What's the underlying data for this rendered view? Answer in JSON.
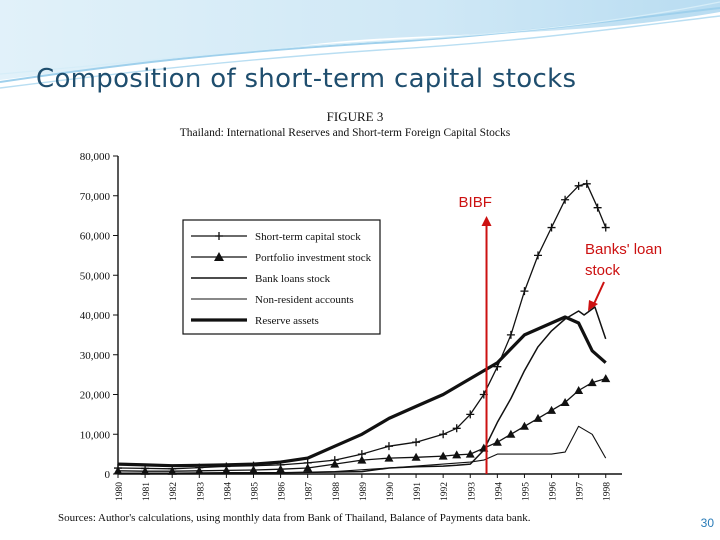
{
  "slide": {
    "title": "Composition of short-term capital stocks",
    "page_number": "30"
  },
  "figure": {
    "label": "FIGURE 3",
    "subtitle": "Thailand: International Reserves and Short-term Foreign Capital Stocks",
    "source": "Sources: Author's calculations, using monthly data from Bank of Thailand, Balance of Payments data bank."
  },
  "annotations": {
    "bibf": "BIBF",
    "bibf_year": 1993.6,
    "banks_loan": "Banks' loan stock",
    "colors": {
      "annotation": "#cc1111",
      "title": "#1f4e6e",
      "accent": "#2a7cb8"
    }
  },
  "chart_data": {
    "type": "line",
    "title": "Thailand: International Reserves and Short-term Foreign Capital Stocks",
    "xlabel": "",
    "ylabel": "",
    "xlim": [
      1980,
      1998.6
    ],
    "ylim": [
      0,
      80000
    ],
    "yticks": [
      "0",
      "10,000",
      "20,000",
      "30,000",
      "40,000",
      "50,000",
      "60,000",
      "70,000",
      "80,000"
    ],
    "xticks": [
      "1980",
      "1981",
      "1982",
      "1983",
      "1984",
      "1985",
      "1986",
      "1987",
      "1988",
      "1989",
      "1990",
      "1991",
      "1992",
      "1993",
      "1994",
      "1995",
      "1996",
      "1997",
      "1998"
    ],
    "legend_position": "upper-left",
    "grid": false,
    "series": [
      {
        "name": "Short-term capital stock",
        "marker": "plus",
        "x": [
          1980,
          1981,
          1982,
          1983,
          1984,
          1985,
          1986,
          1987,
          1988,
          1989,
          1990,
          1991,
          1992,
          1992.5,
          1993,
          1993.5,
          1994,
          1994.5,
          1995,
          1995.5,
          1996,
          1996.5,
          1997,
          1997.3,
          1997.7,
          1998
        ],
        "values": [
          1500,
          1400,
          1300,
          1600,
          1900,
          2100,
          2300,
          2800,
          3500,
          5000,
          7000,
          8000,
          10000,
          11500,
          15000,
          20000,
          27000,
          35000,
          46000,
          55000,
          62000,
          69000,
          72500,
          73000,
          67000,
          62000
        ]
      },
      {
        "name": "Portfolio investment stock",
        "marker": "triangle",
        "x": [
          1980,
          1981,
          1982,
          1983,
          1984,
          1985,
          1986,
          1987,
          1988,
          1989,
          1990,
          1991,
          1992,
          1992.5,
          1993,
          1993.5,
          1994,
          1994.5,
          1995,
          1995.5,
          1996,
          1996.5,
          1997,
          1997.5,
          1998
        ],
        "values": [
          800,
          700,
          700,
          800,
          900,
          1000,
          1200,
          1500,
          2500,
          3500,
          4000,
          4200,
          4500,
          4800,
          5000,
          6500,
          8000,
          10000,
          12000,
          14000,
          16000,
          18000,
          21000,
          23000,
          24000
        ]
      },
      {
        "name": "Bank loans stock",
        "marker": "none",
        "x": [
          1980,
          1982,
          1984,
          1986,
          1988,
          1989,
          1990,
          1991,
          1992,
          1992.5,
          1993,
          1993.5,
          1994,
          1994.5,
          1995,
          1995.5,
          1996,
          1996.5,
          1997,
          1997.2,
          1997.6,
          1998
        ],
        "values": [
          200,
          200,
          300,
          300,
          500,
          600,
          1500,
          1800,
          2000,
          2200,
          2500,
          6000,
          13000,
          19000,
          26000,
          32000,
          36000,
          39000,
          41000,
          40000,
          42000,
          34000
        ]
      },
      {
        "name": "Non-resident accounts",
        "marker": "none",
        "x": [
          1980,
          1982,
          1984,
          1986,
          1988,
          1990,
          1991,
          1992,
          1993,
          1993.5,
          1994,
          1995,
          1996,
          1996.5,
          1997,
          1997.5,
          1998
        ],
        "values": [
          100,
          100,
          200,
          300,
          600,
          1500,
          2000,
          2500,
          3000,
          3500,
          5000,
          5000,
          5000,
          5500,
          12000,
          10000,
          4000
        ]
      },
      {
        "name": "Reserve assets",
        "marker": "none",
        "x": [
          1980,
          1981,
          1982,
          1983,
          1984,
          1985,
          1986,
          1987,
          1988,
          1989,
          1990,
          1991,
          1992,
          1993,
          1994,
          1995,
          1996,
          1996.5,
          1997,
          1997.5,
          1998
        ],
        "values": [
          2500,
          2300,
          2100,
          2200,
          2300,
          2500,
          3000,
          4000,
          7000,
          10000,
          14000,
          17000,
          20000,
          24000,
          28000,
          35000,
          38000,
          39500,
          38000,
          31000,
          28000
        ]
      }
    ]
  }
}
